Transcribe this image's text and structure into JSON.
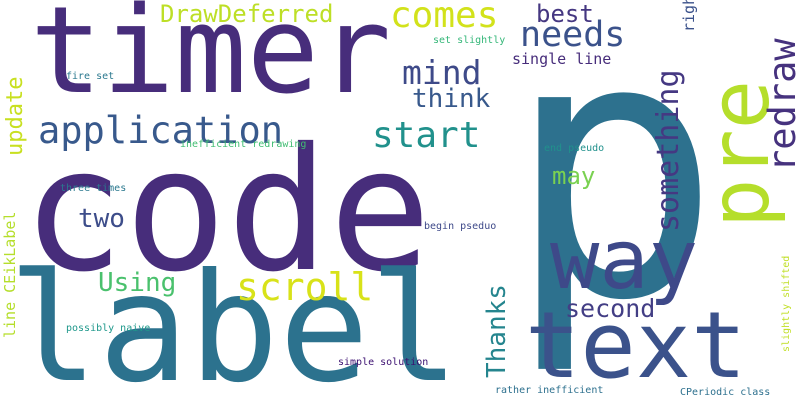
{
  "words": {
    "p": {
      "text": "p",
      "color": "#2d718e"
    },
    "code": {
      "text": "code",
      "color": "#472d7b"
    },
    "timer": {
      "text": "timer",
      "color": "#472d7b"
    },
    "label": {
      "text": "label",
      "color": "#2c728e"
    },
    "text": {
      "text": "text",
      "color": "#3b528b"
    },
    "way": {
      "text": "way",
      "color": "#3e4989"
    },
    "pre": {
      "text": "pre",
      "color": "#b5de2b"
    },
    "application": {
      "text": "application",
      "color": "#38598c"
    },
    "start": {
      "text": "start",
      "color": "#21918c"
    },
    "scroll": {
      "text": "scroll",
      "color": "#d8e219"
    },
    "comes": {
      "text": "comes",
      "color": "#d2e21b"
    },
    "needs": {
      "text": "needs",
      "color": "#3b528b"
    },
    "mind": {
      "text": "mind",
      "color": "#3e4a89"
    },
    "best": {
      "text": "best",
      "color": "#453781"
    },
    "think": {
      "text": "think",
      "color": "#38598c"
    },
    "draw_deferred": {
      "text": "DrawDeferred",
      "color": "#bddf26"
    },
    "using": {
      "text": "Using",
      "color": "#4ac16d"
    },
    "two": {
      "text": "two",
      "color": "#3d4d8a"
    },
    "may": {
      "text": "may",
      "color": "#7ad151"
    },
    "second": {
      "text": "second",
      "color": "#433e85"
    },
    "redraw": {
      "text": "redraw",
      "color": "#46327e"
    },
    "something": {
      "text": "something",
      "color": "#453882"
    },
    "thanks": {
      "text": "Thanks",
      "color": "#25858e"
    },
    "update": {
      "text": "update",
      "color": "#c8e020"
    },
    "line_ceiklabel": {
      "text": "line CEikLabel",
      "color": "#b5de2b"
    },
    "right": {
      "text": "right",
      "color": "#3b528b"
    },
    "slightly_shifted": {
      "text": "slightly shifted",
      "color": "#c0df25"
    },
    "single_line": {
      "text": "single line",
      "color": "#472d7b"
    },
    "set_slightly": {
      "text": "set slightly",
      "color": "#35b779"
    },
    "fire_set": {
      "text": "fire set",
      "color": "#2a788e"
    },
    "inefficient_redrawing": {
      "text": "inefficient redrawing",
      "color": "#40bd72"
    },
    "end_pseudo": {
      "text": "end pseudo",
      "color": "#21918c"
    },
    "three_times": {
      "text": "three times",
      "color": "#2a788e"
    },
    "begin_pseduo": {
      "text": "begin pseduo",
      "color": "#3e4989"
    },
    "possibly_naive": {
      "text": "possibly naive",
      "color": "#1f988b"
    },
    "simple_solution": {
      "text": "simple solution",
      "color": "#3b0f70"
    },
    "rather_inefficient": {
      "text": "rather inefficient",
      "color": "#2d708e"
    },
    "cperiodic_class": {
      "text": "CPeriodic class",
      "color": "#2d708e"
    }
  }
}
